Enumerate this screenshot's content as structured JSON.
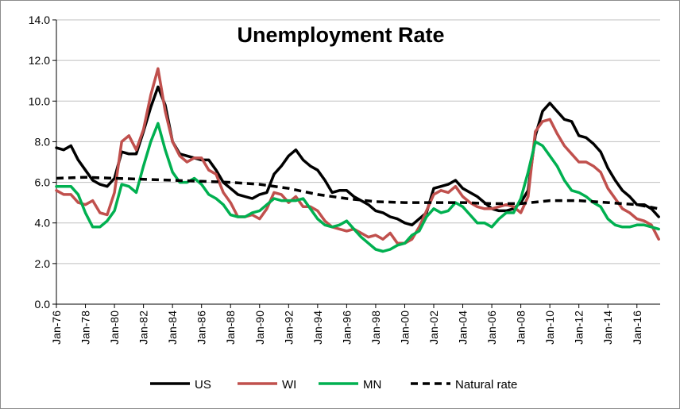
{
  "chart_data": {
    "type": "line",
    "title": "Unemployment Rate",
    "xlabel": "",
    "ylabel": "",
    "ylim": [
      0,
      14
    ],
    "yticks": [
      "0.0",
      "2.0",
      "4.0",
      "6.0",
      "8.0",
      "10.0",
      "12.0",
      "14.0"
    ],
    "xticks": [
      "Jan-76",
      "Jan-78",
      "Jan-80",
      "Jan-82",
      "Jan-84",
      "Jan-86",
      "Jan-88",
      "Jan-90",
      "Jan-92",
      "Jan-94",
      "Jan-96",
      "Jan-98",
      "Jan-00",
      "Jan-02",
      "Jan-04",
      "Jan-06",
      "Jan-08",
      "Jan-10",
      "Jan-12",
      "Jan-14",
      "Jan-16"
    ],
    "xrange": [
      1976,
      2017.6
    ],
    "grid": "horizontal",
    "legend": "bottom",
    "series": [
      {
        "name": "US",
        "color": "#000000",
        "dash": "solid",
        "x": [
          1976,
          1976.5,
          1977,
          1977.5,
          1978,
          1978.5,
          1979,
          1979.5,
          1980,
          1980.5,
          1981,
          1981.5,
          1982,
          1982.5,
          1983,
          1983.5,
          1984,
          1984.5,
          1985,
          1985.5,
          1986,
          1986.5,
          1987,
          1987.5,
          1988,
          1988.5,
          1989,
          1989.5,
          1990,
          1990.5,
          1991,
          1991.5,
          1992,
          1992.5,
          1993,
          1993.5,
          1994,
          1994.5,
          1995,
          1995.5,
          1996,
          1996.5,
          1997,
          1997.5,
          1998,
          1998.5,
          1999,
          1999.5,
          2000,
          2000.5,
          2001,
          2001.5,
          2002,
          2002.5,
          2003,
          2003.5,
          2004,
          2004.5,
          2005,
          2005.5,
          2006,
          2006.5,
          2007,
          2007.5,
          2008,
          2008.5,
          2009,
          2009.5,
          2010,
          2010.5,
          2011,
          2011.5,
          2012,
          2012.5,
          2013,
          2013.5,
          2014,
          2014.5,
          2015,
          2015.5,
          2016,
          2016.5,
          2017,
          2017.5
        ],
        "values": [
          7.7,
          7.6,
          7.8,
          7.1,
          6.6,
          6.1,
          5.9,
          5.8,
          6.2,
          7.5,
          7.4,
          7.4,
          8.5,
          9.7,
          10.7,
          9.8,
          8.0,
          7.4,
          7.3,
          7.2,
          7.1,
          7.1,
          6.6,
          6.0,
          5.7,
          5.4,
          5.3,
          5.2,
          5.4,
          5.5,
          6.4,
          6.8,
          7.3,
          7.6,
          7.1,
          6.8,
          6.6,
          6.1,
          5.5,
          5.6,
          5.6,
          5.3,
          5.1,
          4.9,
          4.6,
          4.5,
          4.3,
          4.2,
          4.0,
          3.9,
          4.2,
          4.5,
          5.7,
          5.8,
          5.9,
          6.1,
          5.7,
          5.5,
          5.3,
          5.0,
          4.7,
          4.6,
          4.6,
          4.7,
          5.0,
          5.6,
          8.3,
          9.5,
          9.9,
          9.5,
          9.1,
          9.0,
          8.3,
          8.2,
          7.9,
          7.5,
          6.7,
          6.1,
          5.6,
          5.3,
          4.9,
          4.9,
          4.7,
          4.3
        ]
      },
      {
        "name": "WI",
        "color": "#c0504d",
        "dash": "solid",
        "x": [
          1976,
          1976.5,
          1977,
          1977.5,
          1978,
          1978.5,
          1979,
          1979.5,
          1980,
          1980.5,
          1981,
          1981.5,
          1982,
          1982.5,
          1983,
          1983.5,
          1984,
          1984.5,
          1985,
          1985.5,
          1986,
          1986.5,
          1987,
          1987.5,
          1988,
          1988.5,
          1989,
          1989.5,
          1990,
          1990.5,
          1991,
          1991.5,
          1992,
          1992.5,
          1993,
          1993.5,
          1994,
          1994.5,
          1995,
          1995.5,
          1996,
          1996.5,
          1997,
          1997.5,
          1998,
          1998.5,
          1999,
          1999.5,
          2000,
          2000.5,
          2001,
          2001.5,
          2002,
          2002.5,
          2003,
          2003.5,
          2004,
          2004.5,
          2005,
          2005.5,
          2006,
          2006.5,
          2007,
          2007.5,
          2008,
          2008.5,
          2009,
          2009.5,
          2010,
          2010.5,
          2011,
          2011.5,
          2012,
          2012.5,
          2013,
          2013.5,
          2014,
          2014.5,
          2015,
          2015.5,
          2016,
          2016.5,
          2017,
          2017.5
        ],
        "values": [
          5.6,
          5.4,
          5.4,
          5.0,
          4.9,
          5.1,
          4.5,
          4.4,
          5.5,
          8.0,
          8.3,
          7.6,
          8.6,
          10.3,
          11.6,
          9.5,
          8.0,
          7.3,
          7.0,
          7.2,
          7.2,
          6.6,
          6.4,
          5.5,
          5.0,
          4.3,
          4.3,
          4.4,
          4.2,
          4.7,
          5.5,
          5.4,
          5.0,
          5.3,
          4.8,
          4.8,
          4.6,
          4.1,
          3.8,
          3.7,
          3.6,
          3.7,
          3.5,
          3.3,
          3.4,
          3.2,
          3.5,
          3.0,
          3.0,
          3.2,
          3.8,
          4.6,
          5.4,
          5.6,
          5.5,
          5.8,
          5.3,
          5.0,
          4.8,
          4.7,
          4.7,
          4.8,
          4.9,
          4.8,
          4.5,
          5.3,
          8.5,
          9.0,
          9.1,
          8.4,
          7.8,
          7.4,
          7.0,
          7.0,
          6.8,
          6.5,
          5.7,
          5.2,
          4.7,
          4.5,
          4.2,
          4.1,
          3.9,
          3.2
        ]
      },
      {
        "name": "MN",
        "color": "#00b050",
        "dash": "solid",
        "x": [
          1976,
          1976.5,
          1977,
          1977.5,
          1978,
          1978.5,
          1979,
          1979.5,
          1980,
          1980.5,
          1981,
          1981.5,
          1982,
          1982.5,
          1983,
          1983.5,
          1984,
          1984.5,
          1985,
          1985.5,
          1986,
          1986.5,
          1987,
          1987.5,
          1988,
          1988.5,
          1989,
          1989.5,
          1990,
          1990.5,
          1991,
          1991.5,
          1992,
          1992.5,
          1993,
          1993.5,
          1994,
          1994.5,
          1995,
          1995.5,
          1996,
          1996.5,
          1997,
          1997.5,
          1998,
          1998.5,
          1999,
          1999.5,
          2000,
          2000.5,
          2001,
          2001.5,
          2002,
          2002.5,
          2003,
          2003.5,
          2004,
          2004.5,
          2005,
          2005.5,
          2006,
          2006.5,
          2007,
          2007.5,
          2008,
          2008.5,
          2009,
          2009.5,
          2010,
          2010.5,
          2011,
          2011.5,
          2012,
          2012.5,
          2013,
          2013.5,
          2014,
          2014.5,
          2015,
          2015.5,
          2016,
          2016.5,
          2017,
          2017.5
        ],
        "values": [
          5.8,
          5.8,
          5.8,
          5.4,
          4.5,
          3.8,
          3.8,
          4.1,
          4.6,
          5.9,
          5.8,
          5.5,
          6.8,
          8.0,
          8.9,
          7.6,
          6.5,
          6.0,
          6.0,
          6.2,
          5.9,
          5.4,
          5.2,
          4.9,
          4.4,
          4.3,
          4.3,
          4.5,
          4.6,
          4.9,
          5.2,
          5.1,
          5.1,
          5.1,
          5.2,
          4.7,
          4.2,
          3.9,
          3.8,
          3.9,
          4.1,
          3.7,
          3.3,
          3.0,
          2.7,
          2.6,
          2.7,
          2.9,
          3.0,
          3.4,
          3.6,
          4.3,
          4.7,
          4.5,
          4.6,
          5.0,
          4.8,
          4.4,
          4.0,
          4.0,
          3.8,
          4.2,
          4.5,
          4.5,
          5.2,
          6.5,
          8.0,
          7.8,
          7.3,
          6.8,
          6.1,
          5.6,
          5.5,
          5.3,
          5.0,
          4.8,
          4.2,
          3.9,
          3.8,
          3.8,
          3.9,
          3.9,
          3.8,
          3.7
        ]
      },
      {
        "name": "Natural rate",
        "color": "#000000",
        "dash": "dashed",
        "x": [
          1976,
          1978,
          1980,
          1982,
          1984,
          1986,
          1988,
          1990,
          1992,
          1994,
          1996,
          1998,
          2000,
          2002,
          2004,
          2006,
          2008,
          2010,
          2012,
          2014,
          2016,
          2017.5
        ],
        "values": [
          6.2,
          6.25,
          6.2,
          6.15,
          6.1,
          6.05,
          6.0,
          5.9,
          5.7,
          5.4,
          5.2,
          5.05,
          5.0,
          5.0,
          5.0,
          4.95,
          4.95,
          5.1,
          5.1,
          5.0,
          4.9,
          4.7
        ]
      }
    ]
  }
}
